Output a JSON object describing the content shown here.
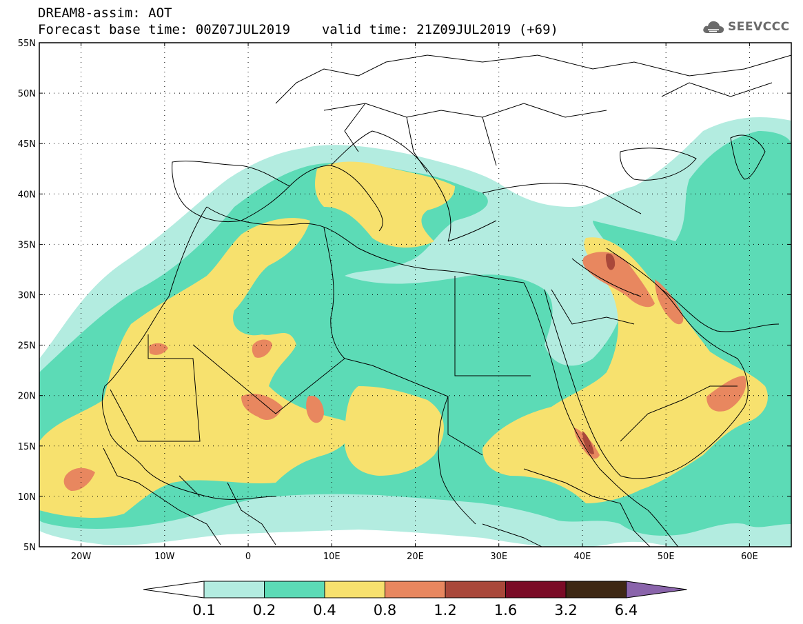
{
  "header": {
    "title": "DREAM8-assim: AOT",
    "base_time_label": "Forecast base time: 00Z07JUL2019",
    "valid_time_label": "valid time: 21Z09JUL2019 (+69)"
  },
  "logo": {
    "text": "SEEVCCC",
    "icon": "cloud-icon"
  },
  "map": {
    "variable": "AOT",
    "lat_range": [
      5,
      55
    ],
    "lon_range": [
      -25,
      65
    ],
    "lat_ticks": [
      "5N",
      "10N",
      "15N",
      "20N",
      "25N",
      "30N",
      "35N",
      "40N",
      "45N",
      "50N",
      "55N"
    ],
    "lon_ticks": [
      "20W",
      "10W",
      "0",
      "10E",
      "20E",
      "30E",
      "40E",
      "50E",
      "60E"
    ],
    "grid": "dotted"
  },
  "colorbar": {
    "labels": [
      "0.1",
      "0.2",
      "0.4",
      "0.8",
      "1.2",
      "1.6",
      "3.2",
      "6.4"
    ],
    "colors": [
      "#ffffff",
      "#b3ece0",
      "#5cdbb6",
      "#f7e16e",
      "#e8875f",
      "#a9483a",
      "#7a0b26",
      "#3e2814",
      "#8a64ab"
    ]
  },
  "colors": {
    "c01": "#b3ece0",
    "c02": "#5cdbb6",
    "c04": "#f7e16e",
    "c08": "#e8875f",
    "c12": "#a9483a",
    "border": "#000000"
  }
}
